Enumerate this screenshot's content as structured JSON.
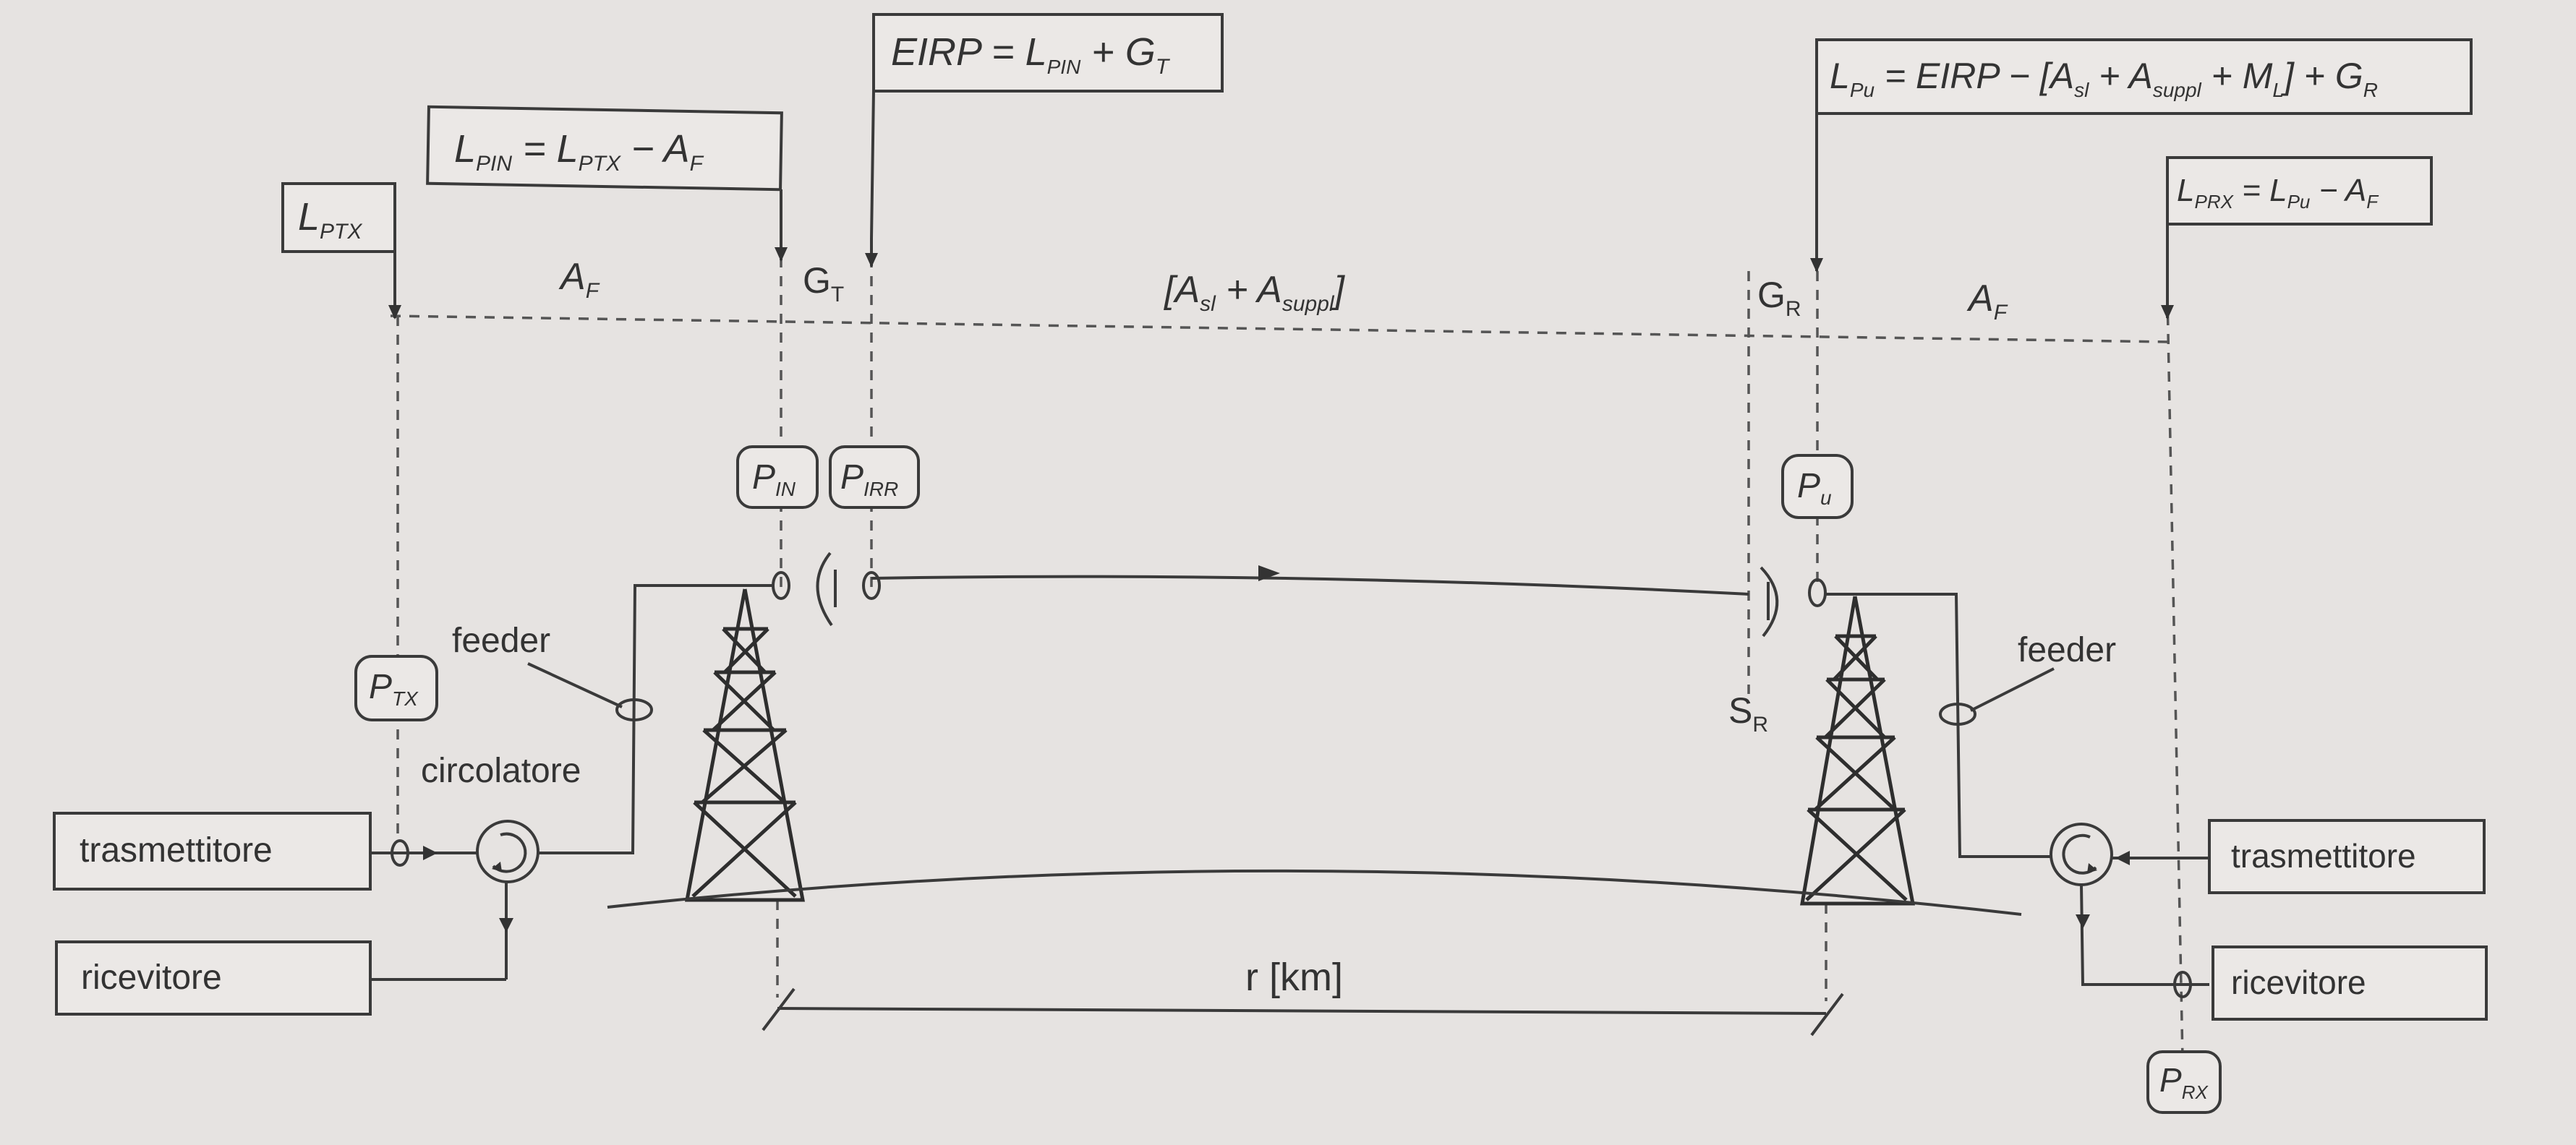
{
  "formulas": {
    "eirp": {
      "base": "EIRP = L",
      "sub1": "PIN",
      "mid": " + G",
      "sub2": "T"
    },
    "lpin": {
      "a": "L",
      "sa": "PIN",
      "b": " = L",
      "sb": "PTX",
      "c": " − A",
      "sc": "F"
    },
    "lptx": {
      "a": "L",
      "sa": "PTX"
    },
    "lpu": {
      "a": "L",
      "sa": "Pu",
      "b": " =  EIRP − [A",
      "sb": "sl",
      "c": " + A",
      "sc": "suppl",
      "d": " + M",
      "sd": "L",
      "e": "] + G",
      "se": "R"
    },
    "lprx": {
      "a": "L",
      "sa": "PRX",
      "b": " = L",
      "sb": "Pu",
      "c": " − A",
      "sc": "F"
    }
  },
  "labels": {
    "af_left": {
      "a": "A",
      "sa": "F"
    },
    "gt": {
      "a": "G",
      "sa": "T"
    },
    "path_loss": {
      "a": "[A",
      "sa": "sl",
      "b": " + A",
      "sb": "suppl",
      "c": "]"
    },
    "gr": {
      "a": "G",
      "sa": "R"
    },
    "af_right": {
      "a": "A",
      "sa": "F"
    },
    "sr": {
      "a": "S",
      "sa": "R"
    },
    "pin": {
      "a": "P",
      "sa": "IN"
    },
    "pirr": {
      "a": "P",
      "sa": "IRR"
    },
    "pu": {
      "a": "P",
      "sa": "u"
    },
    "ptx": {
      "a": "P",
      "sa": "TX"
    },
    "prx": {
      "a": "P",
      "sa": "RX"
    },
    "feeder_left": "feeder",
    "feeder_right": "feeder",
    "circolatore": "circolatore",
    "distance": "r [km]"
  },
  "blocks": {
    "tx_left": "trasmettitore",
    "rx_left": "ricevitore",
    "tx_right": "trasmettitore",
    "rx_right": "ricevitore"
  }
}
